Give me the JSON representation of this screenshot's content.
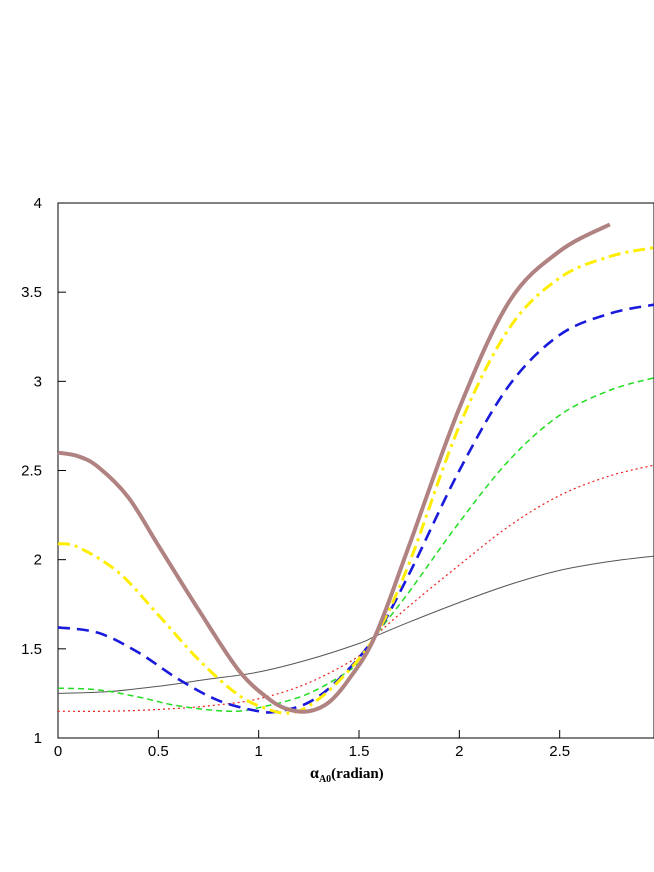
{
  "chart_data": {
    "type": "line",
    "title": "",
    "xlabel": {
      "symbol": "α",
      "subscript": "A0",
      "suffix": "(radian)"
    },
    "ylabel": "",
    "xlim": [
      0,
      2.97
    ],
    "ylim": [
      1,
      4
    ],
    "x_ticks": [
      0,
      0.5,
      1,
      1.5,
      2,
      2.5
    ],
    "x_tick_labels": [
      "0",
      "0.5",
      "1",
      "1.5",
      "2",
      "2.5"
    ],
    "y_ticks": [
      1,
      1.5,
      2,
      2.5,
      3,
      3.5,
      4
    ],
    "y_tick_labels": [
      "1",
      "1.5",
      "2",
      "2.5",
      "3",
      "3.5",
      "4"
    ],
    "grid": false,
    "legend": "none",
    "series": [
      {
        "color": "#555555",
        "style": "solid",
        "width": 1,
        "points": [
          [
            0,
            1.25
          ],
          [
            0.25,
            1.26
          ],
          [
            0.5,
            1.29
          ],
          [
            0.75,
            1.33
          ],
          [
            1.0,
            1.37
          ],
          [
            1.25,
            1.44
          ],
          [
            1.5,
            1.53
          ],
          [
            1.58,
            1.57
          ],
          [
            1.75,
            1.65
          ],
          [
            2.0,
            1.76
          ],
          [
            2.25,
            1.86
          ],
          [
            2.5,
            1.94
          ],
          [
            2.75,
            1.99
          ],
          [
            2.97,
            2.02
          ]
        ]
      },
      {
        "color": "#e8201e",
        "style": "dotted",
        "width": 1.2,
        "points": [
          [
            0,
            1.15
          ],
          [
            0.25,
            1.15
          ],
          [
            0.5,
            1.16
          ],
          [
            0.75,
            1.18
          ],
          [
            1.0,
            1.22
          ],
          [
            1.25,
            1.31
          ],
          [
            1.5,
            1.46
          ],
          [
            1.58,
            1.57
          ],
          [
            1.75,
            1.74
          ],
          [
            2.0,
            1.97
          ],
          [
            2.25,
            2.19
          ],
          [
            2.5,
            2.36
          ],
          [
            2.75,
            2.47
          ],
          [
            2.97,
            2.53
          ]
        ]
      },
      {
        "color": "#22dd22",
        "style": "dashed",
        "width": 1.5,
        "points": [
          [
            0,
            1.28
          ],
          [
            0.2,
            1.27
          ],
          [
            0.4,
            1.23
          ],
          [
            0.6,
            1.18
          ],
          [
            0.85,
            1.15
          ],
          [
            1.0,
            1.17
          ],
          [
            1.25,
            1.25
          ],
          [
            1.5,
            1.42
          ],
          [
            1.58,
            1.57
          ],
          [
            1.75,
            1.82
          ],
          [
            2.0,
            2.21
          ],
          [
            2.25,
            2.56
          ],
          [
            2.5,
            2.81
          ],
          [
            2.75,
            2.95
          ],
          [
            2.97,
            3.02
          ]
        ]
      },
      {
        "color": "#1a1adc",
        "style": "longdash",
        "width": 2.6,
        "points": [
          [
            0,
            1.62
          ],
          [
            0.2,
            1.59
          ],
          [
            0.4,
            1.48
          ],
          [
            0.6,
            1.33
          ],
          [
            0.8,
            1.21
          ],
          [
            1.0,
            1.15
          ],
          [
            1.1,
            1.15
          ],
          [
            1.25,
            1.2
          ],
          [
            1.4,
            1.33
          ],
          [
            1.58,
            1.57
          ],
          [
            1.75,
            1.92
          ],
          [
            2.0,
            2.5
          ],
          [
            2.25,
            2.98
          ],
          [
            2.5,
            3.26
          ],
          [
            2.75,
            3.38
          ],
          [
            2.97,
            3.43
          ]
        ]
      },
      {
        "color": "#ffee00",
        "style": "dashdot",
        "width": 3,
        "points": [
          [
            0,
            2.09
          ],
          [
            0.1,
            2.07
          ],
          [
            0.3,
            1.93
          ],
          [
            0.5,
            1.69
          ],
          [
            0.7,
            1.44
          ],
          [
            0.9,
            1.24
          ],
          [
            1.05,
            1.16
          ],
          [
            1.15,
            1.14
          ],
          [
            1.25,
            1.18
          ],
          [
            1.4,
            1.32
          ],
          [
            1.58,
            1.57
          ],
          [
            1.75,
            1.98
          ],
          [
            2.0,
            2.75
          ],
          [
            2.25,
            3.3
          ],
          [
            2.5,
            3.58
          ],
          [
            2.75,
            3.7
          ],
          [
            2.97,
            3.75
          ]
        ]
      },
      {
        "color": "#b08282",
        "style": "solid",
        "width": 4,
        "points": [
          [
            0,
            2.6
          ],
          [
            0.1,
            2.58
          ],
          [
            0.2,
            2.52
          ],
          [
            0.35,
            2.35
          ],
          [
            0.5,
            2.08
          ],
          [
            0.7,
            1.72
          ],
          [
            0.9,
            1.38
          ],
          [
            1.05,
            1.22
          ],
          [
            1.15,
            1.16
          ],
          [
            1.25,
            1.15
          ],
          [
            1.35,
            1.2
          ],
          [
            1.45,
            1.33
          ],
          [
            1.58,
            1.57
          ],
          [
            1.75,
            2.08
          ],
          [
            2.0,
            2.85
          ],
          [
            2.25,
            3.45
          ],
          [
            2.5,
            3.73
          ],
          [
            2.75,
            3.88
          ]
        ]
      }
    ]
  }
}
